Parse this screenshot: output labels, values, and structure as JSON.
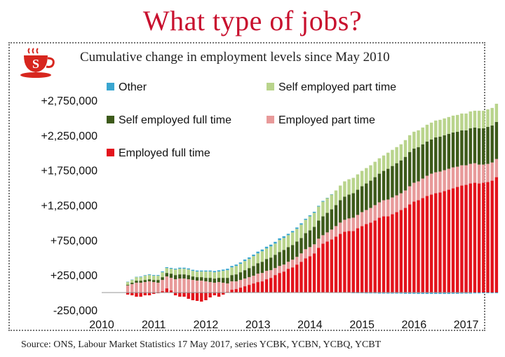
{
  "header": {
    "title": "What type of jobs?",
    "subtitle": "Cumulative change in employment levels since May 2010",
    "logo_letter": "S"
  },
  "footer": {
    "source": "Source: ONS, Labour Market Statistics 17 May 2017, series YCBK, YCBN, YCBQ, YCBT"
  },
  "colors": {
    "title": "#c8102e",
    "employed_full_time": "#e3141c",
    "employed_part_time": "#e89a9a",
    "self_employed_full_time": "#3d5a1a",
    "self_employed_part_time": "#b9d48c",
    "other": "#3aa6d0",
    "logo": "#d7261e"
  },
  "chart_data": {
    "type": "bar",
    "stacked": true,
    "title": "",
    "xlabel": "",
    "ylabel": "",
    "xlim": [
      2010,
      2017.1
    ],
    "ylim": [
      -250000,
      3000000
    ],
    "x_ticks": [
      "2010",
      "2011",
      "2012",
      "2013",
      "2014",
      "2015",
      "2016",
      "2017"
    ],
    "y_ticks": [
      "+2,750,000",
      "+2,250,000",
      "+1,750,000",
      "+1,250,000",
      "+750,000",
      "+250,000",
      "-250,000"
    ],
    "y_tick_values": [
      2750000,
      2250000,
      1750000,
      1250000,
      750000,
      250000,
      -250000
    ],
    "grid": false,
    "legend": "top-left",
    "legend_order": [
      "Other",
      "Self employed part time",
      "Self employed full time",
      "Employed part time",
      "Employed full time"
    ],
    "x_start": 2010.5,
    "x_step": 0.08333,
    "series": [
      {
        "name": "Employed full time",
        "color": "#e3141c",
        "values": [
          -30000,
          -40000,
          -60000,
          -60000,
          -40000,
          -40000,
          -20000,
          -10000,
          20000,
          60000,
          30000,
          -40000,
          -60000,
          -60000,
          -90000,
          -110000,
          -120000,
          -130000,
          -110000,
          -70000,
          -40000,
          -60000,
          -30000,
          10000,
          40000,
          50000,
          70000,
          90000,
          110000,
          130000,
          150000,
          160000,
          190000,
          210000,
          250000,
          280000,
          300000,
          340000,
          360000,
          400000,
          440000,
          490000,
          520000,
          560000,
          640000,
          700000,
          730000,
          760000,
          800000,
          840000,
          870000,
          880000,
          880000,
          920000,
          950000,
          980000,
          1000000,
          1030000,
          1070000,
          1090000,
          1090000,
          1120000,
          1150000,
          1180000,
          1210000,
          1260000,
          1300000,
          1320000,
          1350000,
          1380000,
          1400000,
          1420000,
          1430000,
          1450000,
          1470000,
          1490000,
          1510000,
          1530000,
          1540000,
          1560000,
          1570000,
          1560000,
          1570000,
          1580000,
          1600000,
          1650000
        ]
      },
      {
        "name": "Employed part time",
        "color": "#e89a9a",
        "values": [
          100000,
          120000,
          140000,
          140000,
          150000,
          160000,
          150000,
          140000,
          160000,
          170000,
          180000,
          190000,
          200000,
          200000,
          190000,
          180000,
          170000,
          170000,
          160000,
          150000,
          140000,
          150000,
          140000,
          120000,
          120000,
          110000,
          110000,
          110000,
          110000,
          110000,
          120000,
          120000,
          120000,
          110000,
          100000,
          100000,
          100000,
          100000,
          110000,
          110000,
          120000,
          130000,
          130000,
          130000,
          130000,
          120000,
          130000,
          140000,
          150000,
          160000,
          170000,
          180000,
          190000,
          190000,
          200000,
          200000,
          210000,
          220000,
          220000,
          230000,
          240000,
          240000,
          240000,
          240000,
          250000,
          260000,
          270000,
          270000,
          280000,
          290000,
          300000,
          300000,
          300000,
          300000,
          300000,
          300000,
          290000,
          290000,
          280000,
          280000,
          280000,
          270000,
          260000,
          260000,
          260000,
          260000
        ]
      },
      {
        "name": "Self employed full time",
        "color": "#3d5a1a",
        "values": [
          10000,
          20000,
          30000,
          30000,
          30000,
          30000,
          30000,
          40000,
          40000,
          50000,
          60000,
          60000,
          60000,
          60000,
          60000,
          50000,
          50000,
          50000,
          50000,
          60000,
          60000,
          60000,
          70000,
          80000,
          90000,
          100000,
          110000,
          120000,
          130000,
          140000,
          150000,
          160000,
          170000,
          180000,
          190000,
          200000,
          210000,
          210000,
          210000,
          220000,
          220000,
          230000,
          240000,
          250000,
          260000,
          270000,
          280000,
          290000,
          300000,
          320000,
          330000,
          340000,
          350000,
          360000,
          370000,
          380000,
          390000,
          400000,
          410000,
          420000,
          440000,
          450000,
          460000,
          470000,
          480000,
          490000,
          490000,
          490000,
          490000,
          490000,
          490000,
          500000,
          500000,
          500000,
          500000,
          500000,
          500000,
          500000,
          500000,
          510000,
          510000,
          520000,
          520000,
          530000,
          530000,
          530000
        ]
      },
      {
        "name": "Self employed part time",
        "color": "#b9d48c",
        "values": [
          40000,
          40000,
          50000,
          50000,
          60000,
          60000,
          60000,
          60000,
          70000,
          70000,
          70000,
          80000,
          80000,
          80000,
          80000,
          80000,
          80000,
          80000,
          90000,
          90000,
          90000,
          90000,
          100000,
          110000,
          110000,
          120000,
          120000,
          130000,
          130000,
          140000,
          140000,
          150000,
          150000,
          160000,
          160000,
          170000,
          170000,
          170000,
          180000,
          180000,
          190000,
          190000,
          200000,
          200000,
          200000,
          210000,
          210000,
          210000,
          210000,
          210000,
          220000,
          220000,
          220000,
          220000,
          220000,
          220000,
          220000,
          220000,
          220000,
          220000,
          230000,
          230000,
          230000,
          230000,
          240000,
          240000,
          240000,
          240000,
          240000,
          240000,
          240000,
          240000,
          240000,
          240000,
          240000,
          240000,
          240000,
          240000,
          240000,
          240000,
          240000,
          250000,
          250000,
          250000,
          250000,
          260000
        ]
      },
      {
        "name": "Other",
        "color": "#3aa6d0",
        "values": [
          5000,
          5000,
          5000,
          8000,
          8000,
          10000,
          10000,
          10000,
          12000,
          12000,
          12000,
          12000,
          15000,
          15000,
          15000,
          15000,
          15000,
          15000,
          15000,
          15000,
          18000,
          18000,
          18000,
          20000,
          20000,
          20000,
          20000,
          22000,
          22000,
          22000,
          25000,
          25000,
          25000,
          25000,
          25000,
          25000,
          25000,
          20000,
          20000,
          20000,
          20000,
          15000,
          15000,
          15000,
          10000,
          10000,
          5000,
          5000,
          0,
          0,
          -5000,
          -5000,
          -10000,
          -10000,
          -10000,
          -12000,
          -12000,
          -12000,
          -15000,
          -15000,
          -15000,
          -15000,
          -15000,
          -15000,
          -18000,
          -18000,
          -18000,
          -20000,
          -20000,
          -20000,
          -20000,
          -20000,
          -20000,
          -20000,
          -20000,
          -18000,
          -18000,
          -15000,
          -15000,
          -15000,
          -12000,
          -12000,
          -10000,
          -10000,
          -10000,
          -10000
        ]
      }
    ]
  }
}
